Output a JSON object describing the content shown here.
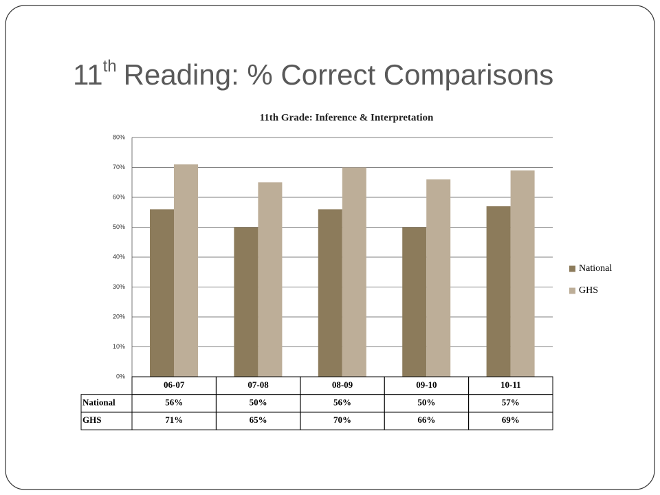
{
  "slide_title": {
    "number": "11",
    "suffix": "th",
    "text": "Reading: % Correct Comparisons"
  },
  "chart_data": {
    "type": "bar",
    "title": "11th Grade:  Inference & Interpretation",
    "categories": [
      "06-07",
      "07-08",
      "08-09",
      "09-10",
      "10-11"
    ],
    "series": [
      {
        "name": "National",
        "color": "#8c7b5b",
        "values": [
          56,
          50,
          56,
          50,
          57
        ],
        "value_labels": [
          "56%",
          "50%",
          "56%",
          "50%",
          "57%"
        ]
      },
      {
        "name": "GHS",
        "color": "#bdae98",
        "values": [
          71,
          65,
          70,
          66,
          69
        ],
        "value_labels": [
          "71%",
          "65%",
          "70%",
          "66%",
          "69%"
        ]
      }
    ],
    "ylim": [
      0,
      80
    ],
    "yticks": [
      {
        "value": 0,
        "label": "0%"
      },
      {
        "value": 10,
        "label": "10%"
      },
      {
        "value": 20,
        "label": "20%"
      },
      {
        "value": 30,
        "label": "30%"
      },
      {
        "value": 40,
        "label": "40%"
      },
      {
        "value": 50,
        "label": "50%"
      },
      {
        "value": 60,
        "label": "60%"
      },
      {
        "value": 70,
        "label": "70%"
      },
      {
        "value": 80,
        "label": "80%"
      }
    ],
    "grid": true,
    "legend": "right"
  }
}
